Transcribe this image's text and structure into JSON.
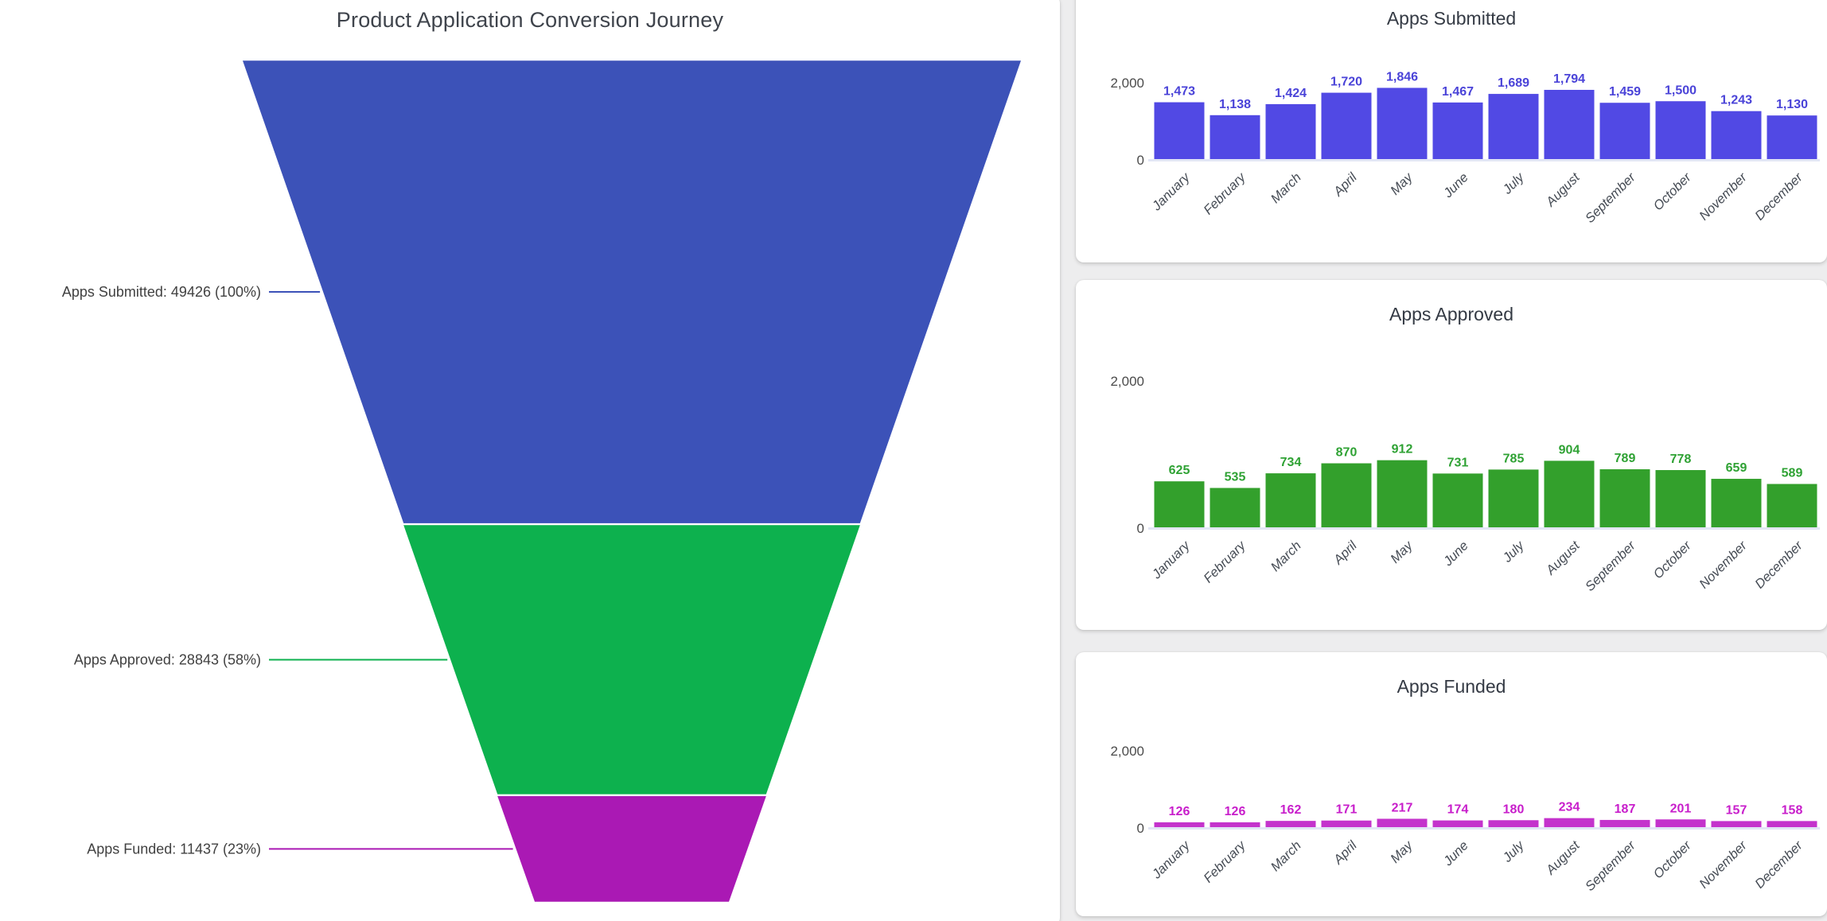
{
  "page": {
    "background_color": "#ededee",
    "card_background_color": "#ffffff"
  },
  "axis": {
    "tick_label_color": "#4b4b4b",
    "category_label_color": "#454b54"
  },
  "chart_data": [
    {
      "type": "funnel",
      "title": "Product Application Conversion Journey",
      "stages": [
        {
          "label": "Apps Submitted",
          "value": 49426,
          "percent": "100%",
          "color": "#3c52b8"
        },
        {
          "label": "Apps Approved",
          "value": 28843,
          "percent": "58%",
          "color": "#0db14e"
        },
        {
          "label": "Apps Funded",
          "value": 11437,
          "percent": "23%",
          "color": "#aa19b4"
        }
      ],
      "label_color": "#414141",
      "title_color": "#3f444c"
    },
    {
      "type": "bar",
      "title": "Apps Submitted",
      "categories": [
        "January",
        "February",
        "March",
        "April",
        "May",
        "June",
        "July",
        "August",
        "September",
        "October",
        "November",
        "December"
      ],
      "values": [
        1473,
        1138,
        1424,
        1720,
        1846,
        1467,
        1689,
        1794,
        1459,
        1500,
        1243,
        1130
      ],
      "ylim": [
        0,
        2000
      ],
      "yticks": [
        "0",
        "2,000"
      ],
      "grid": false,
      "bar_color": "#5149e4",
      "value_label_color": "#4a43d8"
    },
    {
      "type": "bar",
      "title": "Apps Approved",
      "categories": [
        "January",
        "February",
        "March",
        "April",
        "May",
        "June",
        "July",
        "August",
        "September",
        "October",
        "November",
        "December"
      ],
      "values": [
        625,
        535,
        734,
        870,
        912,
        731,
        785,
        904,
        789,
        778,
        659,
        589
      ],
      "ylim": [
        0,
        2000
      ],
      "yticks": [
        "0",
        "2,000"
      ],
      "grid": false,
      "bar_color": "#33a02c",
      "value_label_color": "#2fa234"
    },
    {
      "type": "bar",
      "title": "Apps Funded",
      "categories": [
        "January",
        "February",
        "March",
        "April",
        "May",
        "June",
        "July",
        "August",
        "September",
        "October",
        "November",
        "December"
      ],
      "values": [
        126,
        126,
        162,
        171,
        217,
        174,
        180,
        234,
        187,
        201,
        157,
        158
      ],
      "ylim": [
        0,
        2000
      ],
      "yticks": [
        "0",
        "2,000"
      ],
      "grid": false,
      "bar_color": "#c433cc",
      "value_label_color": "#c81ecb"
    }
  ]
}
